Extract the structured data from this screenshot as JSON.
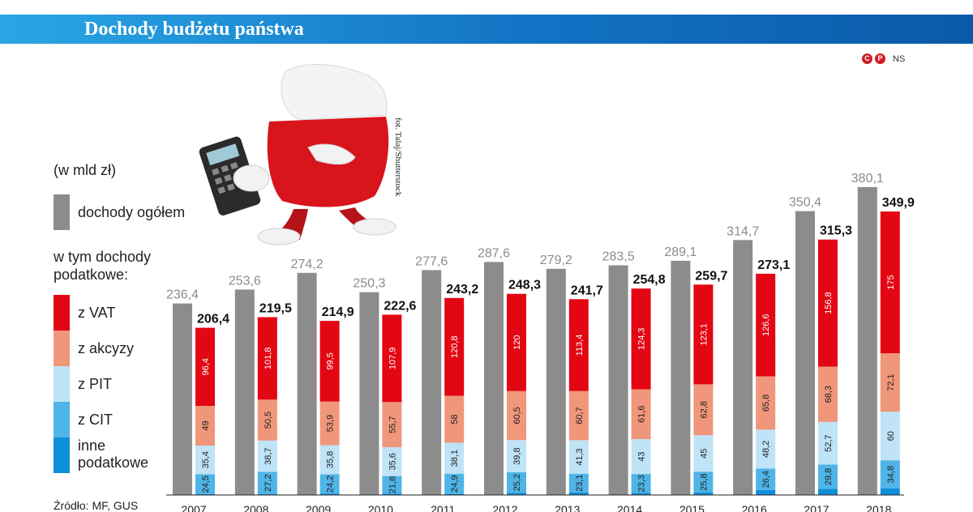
{
  "header": {
    "title": "Dochody budżetu państwa"
  },
  "credit": {
    "c": "C",
    "p": "P",
    "ns": "NS"
  },
  "photo_credit": "fot. Talaj/Shutterstock",
  "legend": {
    "unit": "(w mld zł)",
    "total_label": "dochody ogółem",
    "subtitle": "w tym dochody podatkowe:",
    "items": [
      {
        "label": "z VAT",
        "color": "#e30613"
      },
      {
        "label": "z akcyzy",
        "color": "#f0967a"
      },
      {
        "label": "z PIT",
        "color": "#bfe3f7"
      },
      {
        "label": "z CIT",
        "color": "#4fb4e6"
      },
      {
        "label": "inne podatkowe",
        "color": "#0f8fda"
      }
    ],
    "total_color": "#8c8c8c"
  },
  "source": "Źródło: MF, GUS",
  "chart_data": {
    "type": "bar",
    "title": "Dochody budżetu państwa",
    "ylabel": "w mld zł",
    "categories": [
      "2007",
      "2008",
      "2009",
      "2010",
      "2011",
      "2012",
      "2013",
      "2014",
      "2015",
      "2016",
      "2017",
      "2018"
    ],
    "total_income": [
      236.4,
      253.6,
      274.2,
      250.3,
      277.6,
      287.6,
      279.2,
      283.5,
      289.1,
      314.7,
      350.4,
      380.1
    ],
    "tax_income": [
      206.4,
      219.5,
      214.9,
      222.6,
      243.2,
      248.3,
      241.7,
      254.8,
      259.7,
      273.1,
      315.3,
      349.9
    ],
    "series": [
      {
        "name": "z VAT",
        "values": [
          96.4,
          101.8,
          99.5,
          107.9,
          120.8,
          120,
          113.4,
          124.3,
          123.1,
          126.6,
          156.8,
          175
        ]
      },
      {
        "name": "z akcyzy",
        "values": [
          49,
          50.5,
          53.9,
          55.7,
          58,
          60.5,
          60.7,
          61.6,
          62.8,
          65.8,
          68.3,
          72.1
        ]
      },
      {
        "name": "z PIT",
        "values": [
          35.4,
          38.7,
          35.8,
          35.6,
          38.1,
          39.8,
          41.3,
          43,
          45,
          48.2,
          52.7,
          60
        ]
      },
      {
        "name": "z CIT",
        "values": [
          24.5,
          27.2,
          24.2,
          21.8,
          24.9,
          25.2,
          23.1,
          23.3,
          25.8,
          26.4,
          29.8,
          34.8
        ]
      }
    ],
    "ylim": [
      0,
      400
    ]
  }
}
